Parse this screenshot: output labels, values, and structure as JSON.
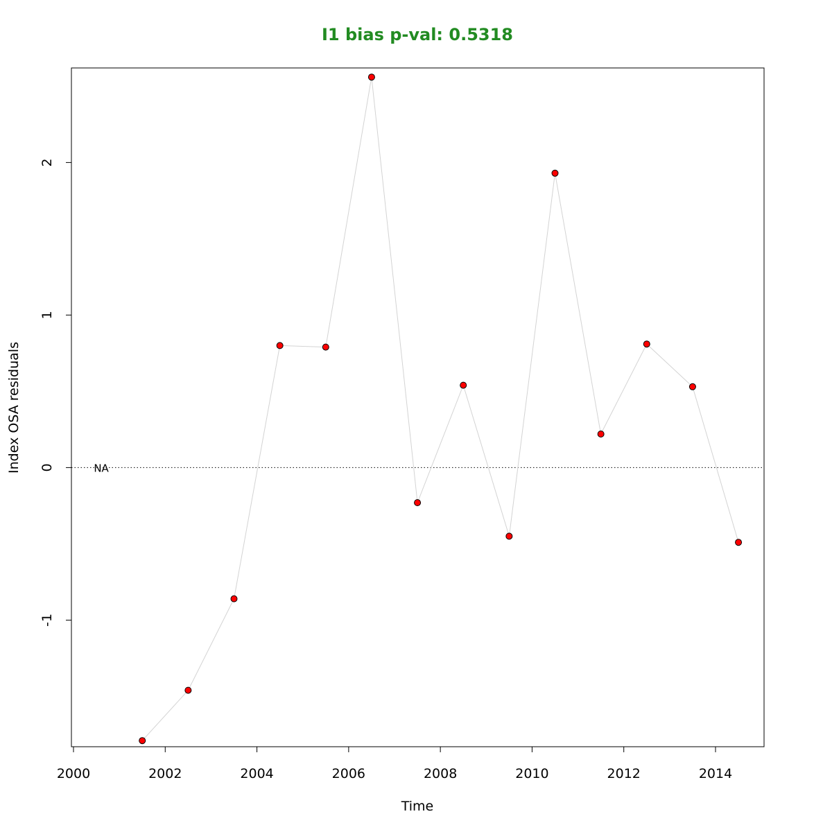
{
  "chart_data": {
    "type": "scatter",
    "title": "I1 bias p-val: 0.5318",
    "title_color": "#228B22",
    "xlabel": "Time",
    "ylabel": "Index OSA residuals",
    "xlim": [
      2000,
      2015
    ],
    "ylim": [
      -1.83,
      2.62
    ],
    "x_ticks": [
      2000,
      2002,
      2004,
      2006,
      2008,
      2010,
      2012,
      2014
    ],
    "y_ticks": [
      -1,
      0,
      1,
      2
    ],
    "grid": false,
    "legend": "none",
    "connect_points": true,
    "line_color": "#d3d3d3",
    "point_fill": "#ff0000",
    "point_stroke": "#000000",
    "reference_line": {
      "y": 0,
      "style": "dotted"
    },
    "annotation": {
      "text": "NA",
      "x": 2000.5,
      "y": 0
    },
    "series": [
      {
        "x": [
          2001.5,
          2002.5,
          2003.5,
          2004.5,
          2005.5,
          2006.5,
          2007.5,
          2008.5,
          2009.5,
          2010.5,
          2011.5,
          2012.5,
          2013.5,
          2014.5
        ],
        "y": [
          -1.79,
          -1.46,
          -0.86,
          0.8,
          0.79,
          2.56,
          -0.23,
          0.54,
          -0.45,
          1.93,
          0.22,
          0.81,
          0.53,
          -0.49
        ]
      }
    ]
  }
}
